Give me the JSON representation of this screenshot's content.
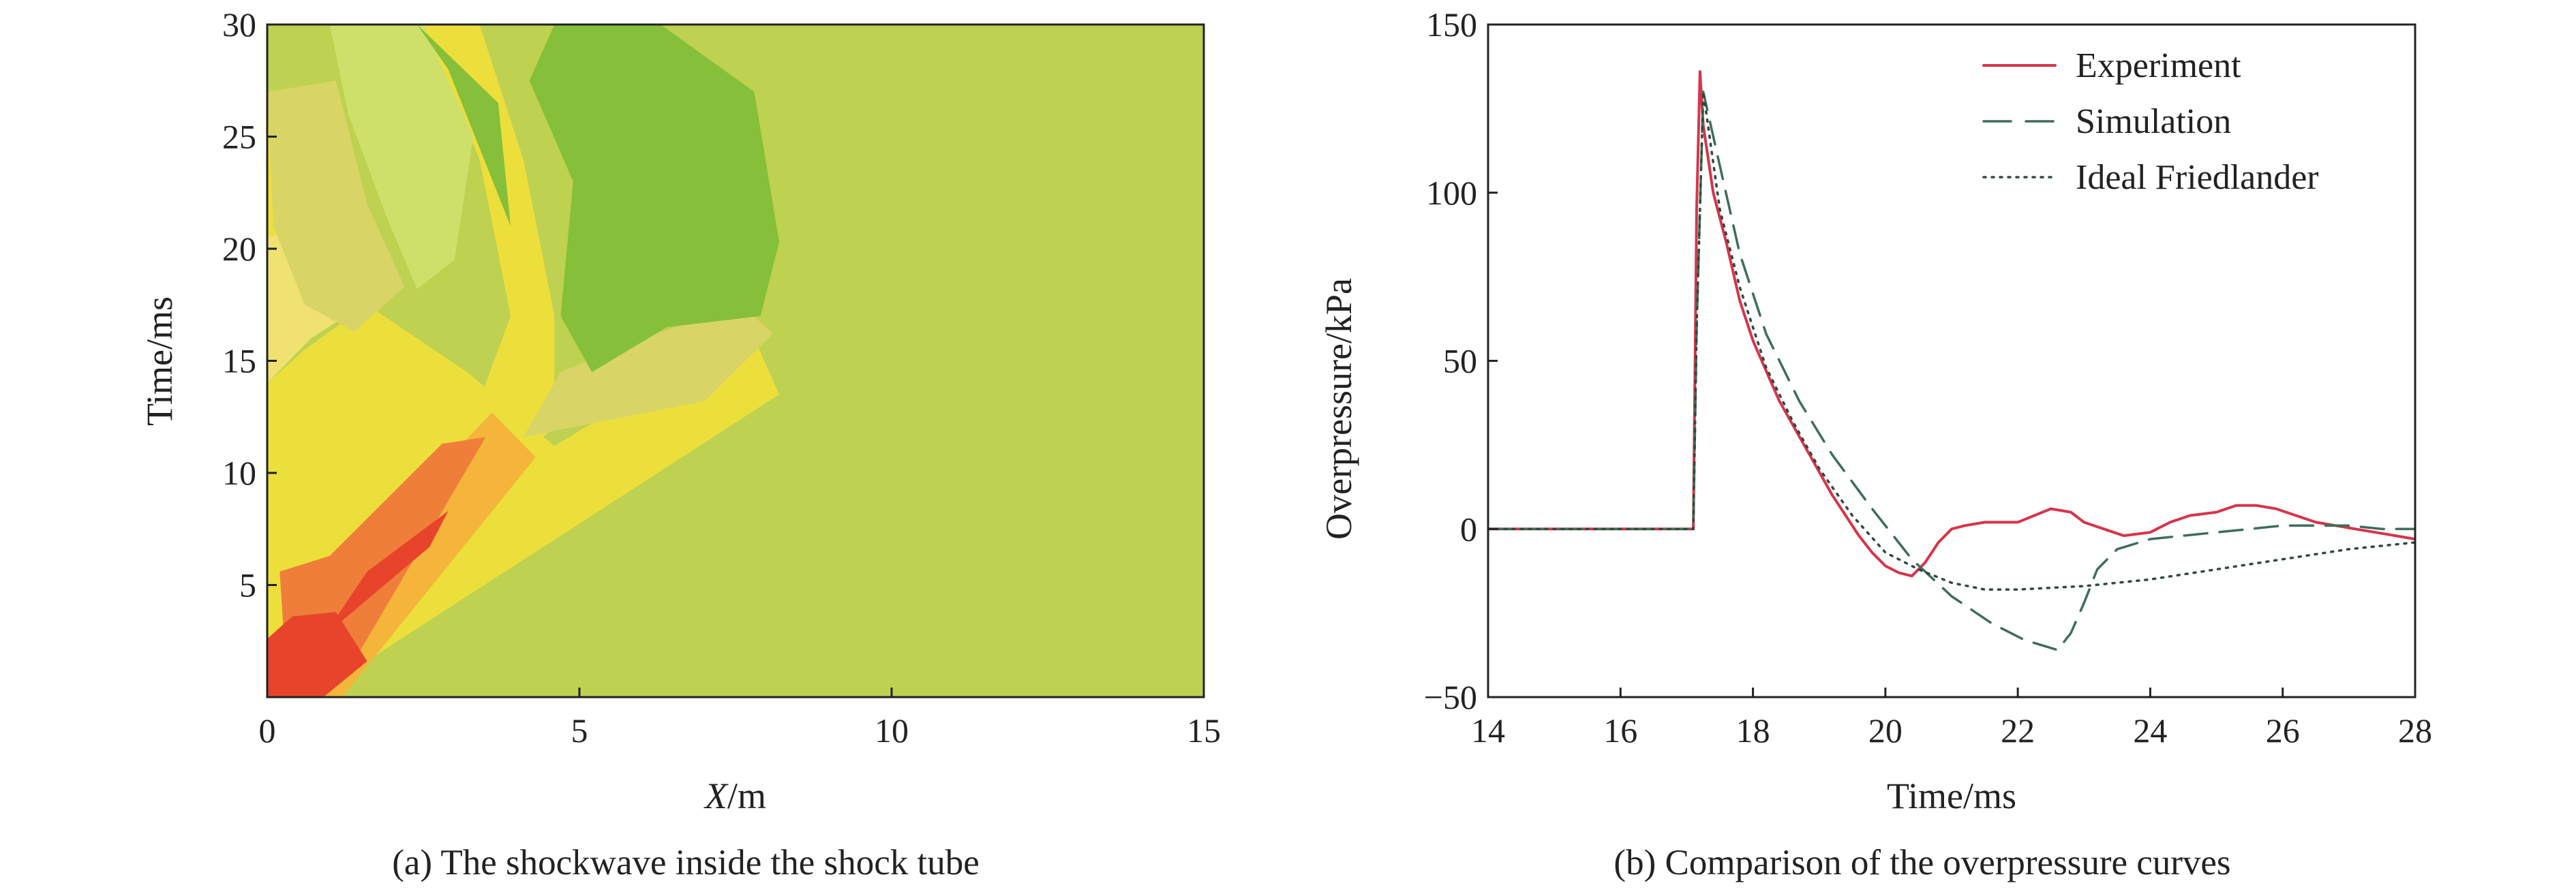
{
  "chart_data": [
    {
      "type": "heatmap",
      "caption": "(a) The shockwave inside the shock tube",
      "xlabel": {
        "italic": "X",
        "rest": "/m"
      },
      "ylabel": "Time/ms",
      "xlim": [
        0,
        15
      ],
      "ylim": [
        0,
        30
      ],
      "x_ticks": [
        "0",
        "5",
        "10",
        "15"
      ],
      "y_ticks": [
        "5",
        "10",
        "15",
        "20",
        "25",
        "30"
      ],
      "colors": {
        "background": "#bfd150",
        "light_green": "#cfe06a",
        "khaki": "#d8d466",
        "yellow": "#ecdf3c",
        "pale_yellow": "#efe272",
        "green": "#86bf3a",
        "light_orange": "#f5b53a",
        "orange": "#ef7e3a",
        "red": "#e8442c"
      },
      "regions": [
        {
          "color": "yellow",
          "points": [
            [
              0,
              0
            ],
            [
              0.7,
              0
            ],
            [
              8.2,
              13.5
            ],
            [
              7.8,
              16
            ],
            [
              5.2,
              12.2
            ],
            [
              4.6,
              11.2
            ],
            [
              3.2,
              14.5
            ],
            [
              1.6,
              17.5
            ],
            [
              0.6,
              15.5
            ],
            [
              0,
              14
            ]
          ]
        },
        {
          "color": "pale_yellow",
          "points": [
            [
              0,
              14
            ],
            [
              0.7,
              16
            ],
            [
              1.7,
              17.8
            ],
            [
              1.3,
              20.5
            ],
            [
              0.3,
              22
            ],
            [
              0,
              22
            ]
          ]
        },
        {
          "color": "yellow",
          "points": [
            [
              2.5,
              30
            ],
            [
              3.4,
              30
            ],
            [
              4.1,
              24
            ],
            [
              4.6,
              17
            ],
            [
              4.6,
              12
            ],
            [
              3.8,
              10.3
            ],
            [
              3.3,
              12.5
            ],
            [
              3.9,
              17
            ],
            [
              3.4,
              24
            ]
          ]
        },
        {
          "color": "yellow",
          "points": [
            [
              0,
              20.5
            ],
            [
              0.7,
              21
            ],
            [
              0.75,
              25.5
            ],
            [
              0.2,
              26.5
            ],
            [
              0,
              26
            ]
          ]
        },
        {
          "color": "khaki",
          "points": [
            [
              0,
              27
            ],
            [
              1.1,
              27.5
            ],
            [
              1.6,
              22
            ],
            [
              2.2,
              18.3
            ],
            [
              1.4,
              16.3
            ],
            [
              0.6,
              17.5
            ],
            [
              0.1,
              21
            ]
          ]
        },
        {
          "color": "khaki",
          "points": [
            [
              4.1,
              11.6
            ],
            [
              7.0,
              13.2
            ],
            [
              8.1,
              16.2
            ],
            [
              7.6,
              17.5
            ],
            [
              6.0,
              16
            ],
            [
              4.7,
              14.5
            ]
          ]
        },
        {
          "color": "light_green",
          "points": [
            [
              1.0,
              30
            ],
            [
              2.5,
              30
            ],
            [
              3.3,
              25
            ],
            [
              3.0,
              19.5
            ],
            [
              2.4,
              18.2
            ],
            [
              1.9,
              21.5
            ],
            [
              1.3,
              26
            ]
          ]
        },
        {
          "color": "green",
          "points": [
            [
              4.6,
              30
            ],
            [
              6.3,
              30
            ],
            [
              7.8,
              27
            ],
            [
              8.2,
              20.3
            ],
            [
              7.9,
              17
            ],
            [
              6.4,
              16.5
            ],
            [
              5.2,
              14.5
            ],
            [
              4.7,
              17
            ],
            [
              4.9,
              23
            ],
            [
              4.2,
              27.5
            ]
          ]
        },
        {
          "color": "green",
          "points": [
            [
              2.4,
              30
            ],
            [
              2.9,
              28
            ],
            [
              3.9,
              21
            ],
            [
              3.7,
              26.5
            ]
          ]
        },
        {
          "color": "light_orange",
          "points": [
            [
              0.5,
              0
            ],
            [
              1.2,
              0
            ],
            [
              4.3,
              10.7
            ],
            [
              3.6,
              12.7
            ],
            [
              2.1,
              8.3
            ],
            [
              0.6,
              4.6
            ]
          ]
        },
        {
          "color": "orange",
          "points": [
            [
              0.3,
              1.3
            ],
            [
              1.2,
              0.7
            ],
            [
              3.5,
              11.6
            ],
            [
              2.8,
              11.3
            ],
            [
              1.0,
              6.3
            ],
            [
              0.2,
              5.6
            ]
          ]
        },
        {
          "color": "red",
          "points": [
            [
              0,
              0
            ],
            [
              0.9,
              0
            ],
            [
              1.6,
              1.6
            ],
            [
              1.1,
              3.8
            ],
            [
              0.4,
              3.6
            ],
            [
              0,
              2.6
            ]
          ]
        },
        {
          "color": "red",
          "points": [
            [
              0.9,
              2.7
            ],
            [
              2.6,
              6.7
            ],
            [
              2.9,
              8.3
            ],
            [
              1.6,
              5.6
            ]
          ]
        }
      ]
    },
    {
      "type": "line",
      "caption": "(b) Comparison of the overpressure curves",
      "xlabel": "Time/ms",
      "ylabel": "Overpressure/kPa",
      "xlim": [
        14,
        28
      ],
      "ylim": [
        -50,
        150
      ],
      "x_ticks": [
        "14",
        "16",
        "18",
        "20",
        "22",
        "24",
        "26",
        "28"
      ],
      "y_ticks": [
        "−50",
        "0",
        "50",
        "100",
        "150"
      ],
      "legend_position": "top-right",
      "series": [
        {
          "name": "Experiment",
          "color": "#d8344a",
          "style": "solid",
          "x": [
            14,
            15,
            16,
            16.5,
            17.1,
            17.15,
            17.2,
            17.25,
            17.4,
            17.6,
            17.8,
            18.0,
            18.2,
            18.4,
            18.6,
            18.8,
            19.0,
            19.2,
            19.4,
            19.6,
            19.8,
            20.0,
            20.2,
            20.4,
            20.6,
            20.8,
            21.0,
            21.2,
            21.5,
            22.0,
            22.5,
            22.8,
            23.0,
            23.3,
            23.6,
            24.0,
            24.3,
            24.6,
            25.0,
            25.3,
            25.6,
            25.9,
            26.2,
            26.5,
            26.8,
            27.1,
            27.4,
            27.7,
            28.0
          ],
          "y": [
            0,
            0,
            0,
            0,
            0,
            95,
            136,
            120,
            100,
            85,
            68,
            56,
            47,
            38,
            31,
            24,
            17,
            10,
            4,
            -2,
            -7,
            -11,
            -13,
            -14,
            -10,
            -4,
            0,
            1,
            2,
            2,
            6,
            5,
            2,
            0,
            -2,
            -1,
            2,
            4,
            5,
            7,
            7,
            6,
            4,
            2,
            1,
            0,
            -1,
            -2,
            -3
          ]
        },
        {
          "name": "Simulation",
          "color": "#3d6e5a",
          "style": "dashed",
          "x": [
            14,
            16,
            17.1,
            17.15,
            17.25,
            17.5,
            17.8,
            18.2,
            18.7,
            19.2,
            19.8,
            20.4,
            21.0,
            21.6,
            22.1,
            22.6,
            22.8,
            23.0,
            23.2,
            23.5,
            24.0,
            24.5,
            25.0,
            25.5,
            26.0,
            26.5,
            27.0,
            27.5,
            28.0
          ],
          "y": [
            0,
            0,
            0,
            60,
            130,
            108,
            82,
            58,
            38,
            22,
            6,
            -9,
            -20,
            -28,
            -33,
            -36,
            -31,
            -22,
            -12,
            -6,
            -3,
            -2,
            -1,
            0,
            1,
            1,
            1,
            0,
            0
          ]
        },
        {
          "name": "Ideal Friedlander",
          "color": "#2e4a3c",
          "style": "dotted",
          "x": [
            14,
            16,
            17.1,
            17.15,
            17.25,
            17.5,
            17.8,
            18.2,
            18.6,
            19.0,
            19.5,
            20.0,
            20.5,
            21.0,
            21.5,
            22.0,
            23.0,
            24.0,
            25.0,
            26.0,
            27.0,
            28.0
          ],
          "y": [
            0,
            0,
            0,
            60,
            130,
            95,
            72,
            48,
            32,
            18,
            4,
            -7,
            -12,
            -16,
            -18,
            -18,
            -17,
            -15,
            -12,
            -9,
            -6,
            -4
          ]
        }
      ]
    }
  ]
}
